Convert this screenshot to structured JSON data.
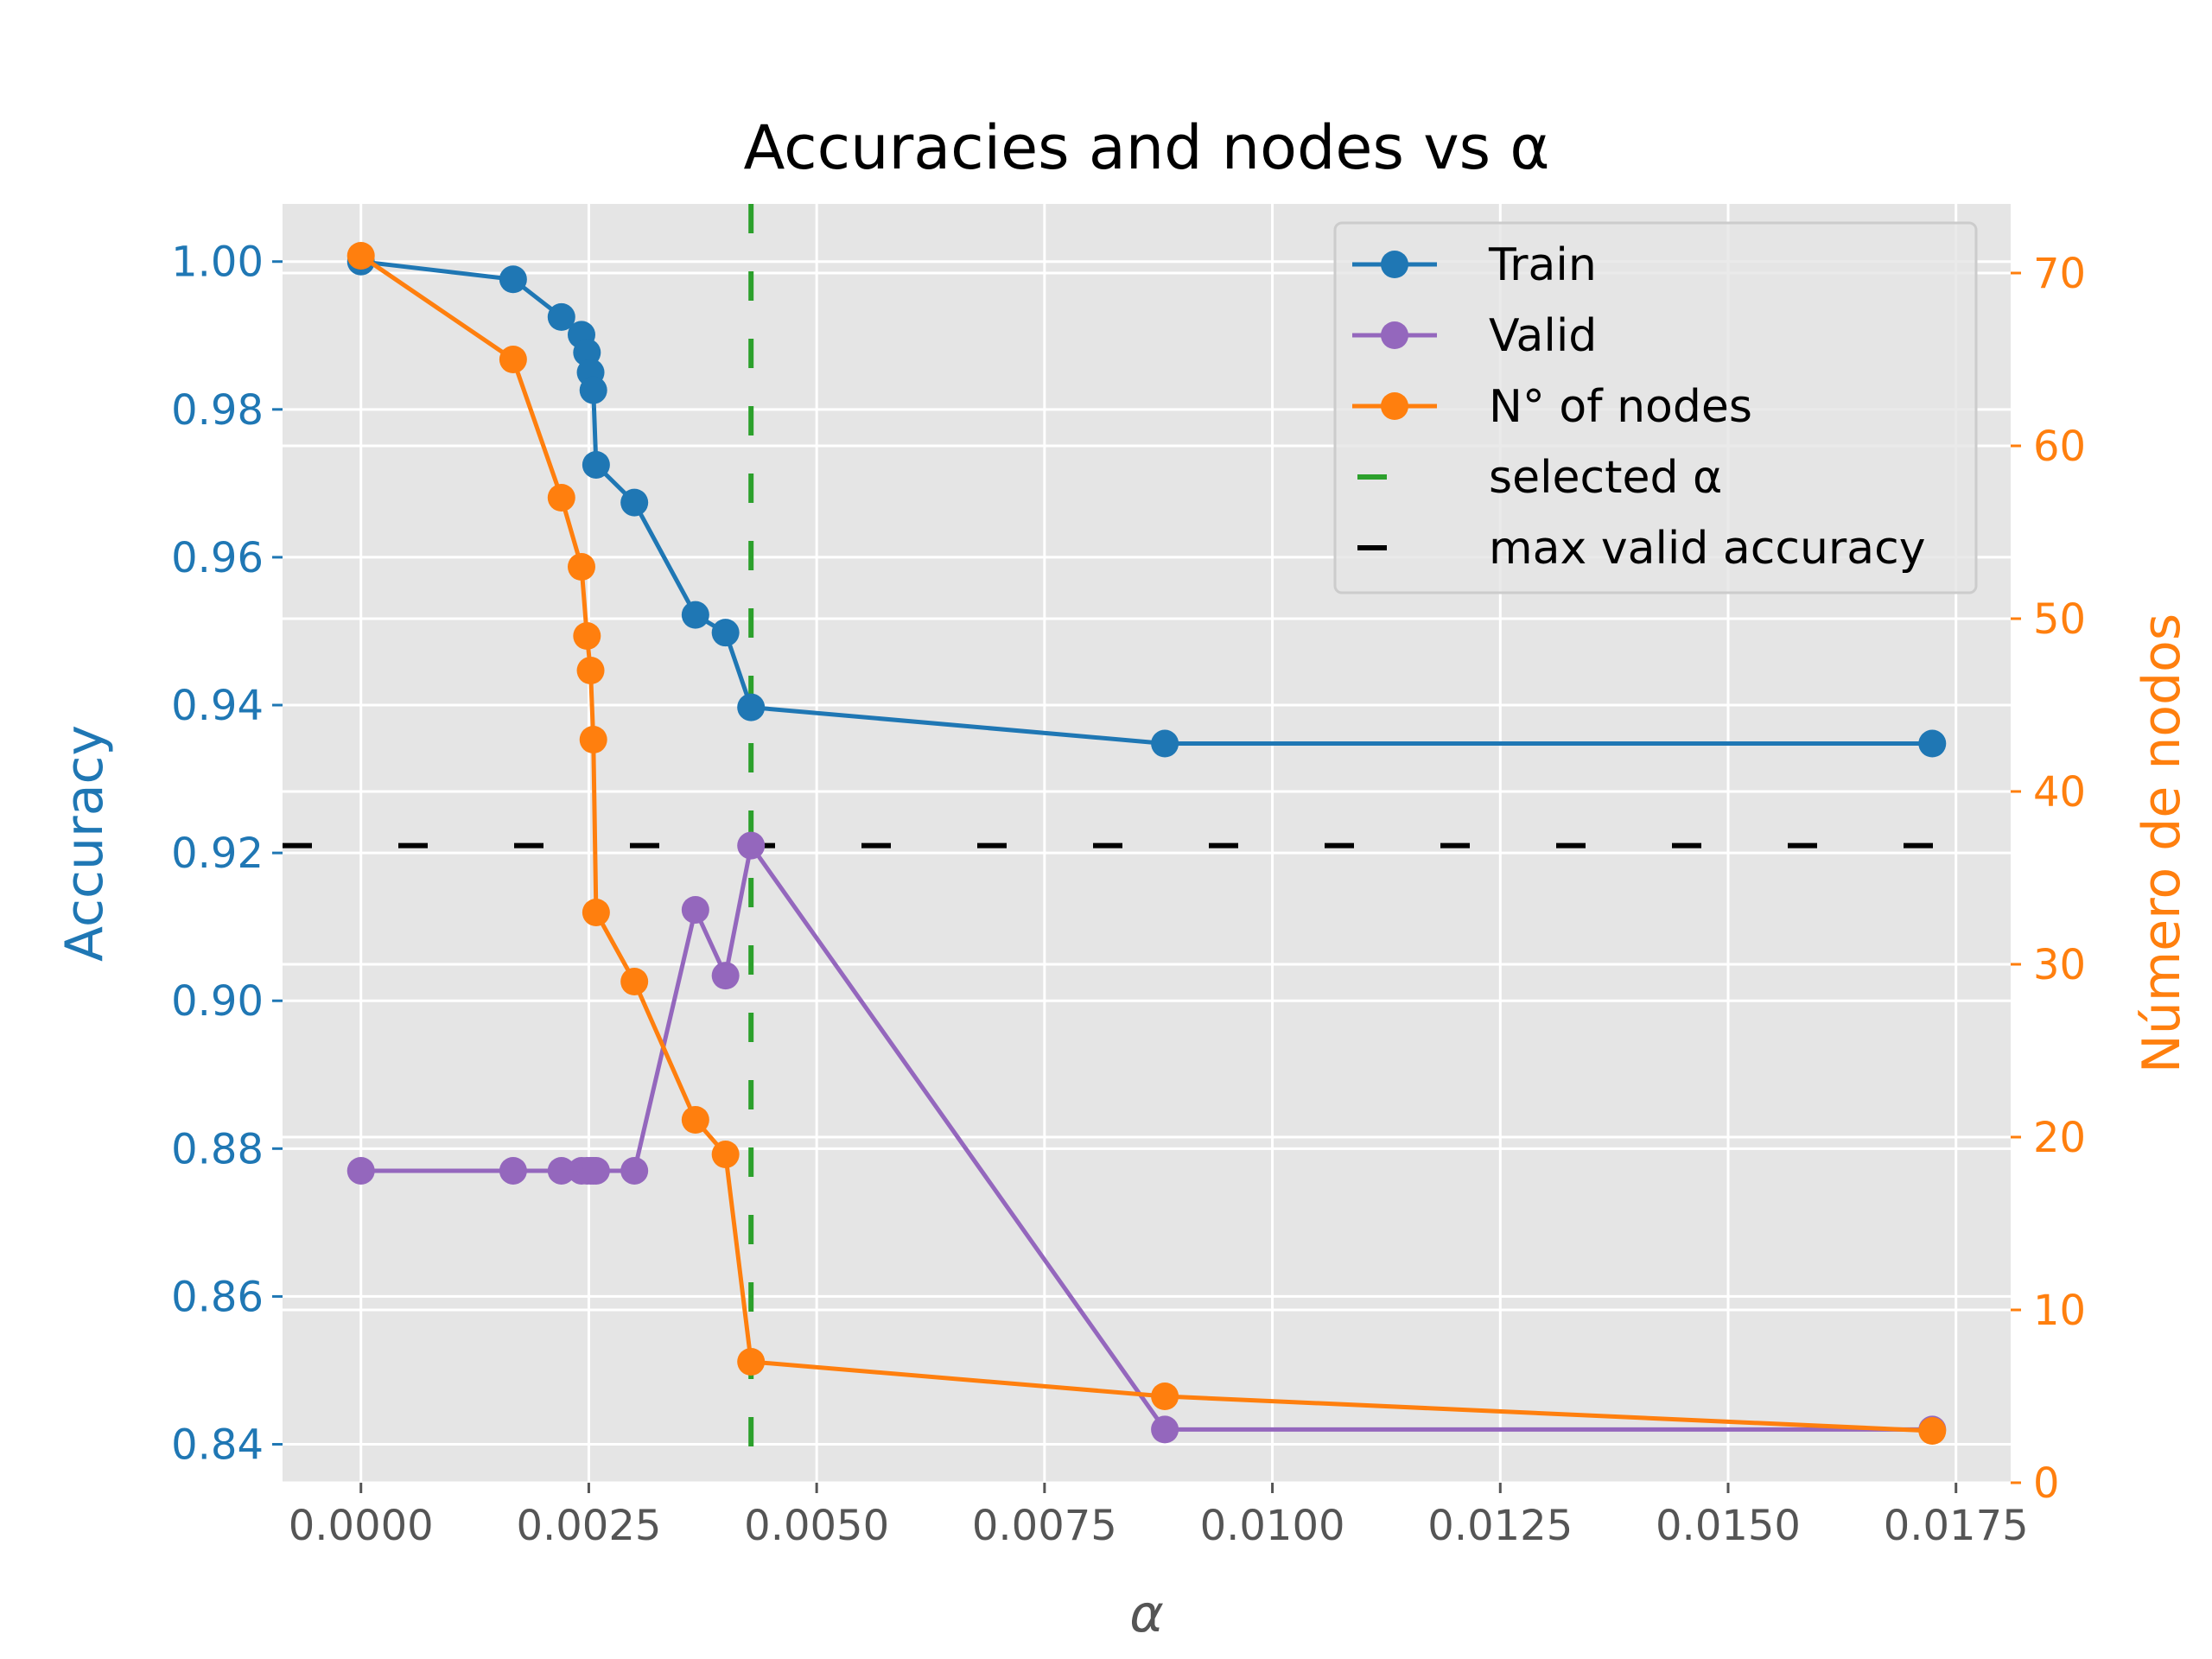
{
  "chart_data": {
    "type": "line",
    "title": "Accuracies and nodes vs α",
    "xlabel": "α",
    "ylabel_left": "Accuracy",
    "ylabel_right": "Número de nodos",
    "xlim": [
      -0.00086,
      0.0181
    ],
    "ylim_left": [
      0.8348,
      1.0078
    ],
    "ylim_right": [
      0,
      74
    ],
    "x_ticks": [
      "0.0000",
      "0.0025",
      "0.0050",
      "0.0075",
      "0.0100",
      "0.0125",
      "0.0150",
      "0.0175"
    ],
    "y_left_ticks": [
      "0.84",
      "0.86",
      "0.88",
      "0.90",
      "0.92",
      "0.94",
      "0.96",
      "0.98",
      "1.00"
    ],
    "y_right_ticks": [
      "0",
      "10",
      "20",
      "30",
      "40",
      "50",
      "60",
      "70"
    ],
    "grid": true,
    "legend_position": "top-right",
    "x": [
      0.0,
      0.00167,
      0.0022,
      0.00242,
      0.00248,
      0.00252,
      0.00255,
      0.00258,
      0.003,
      0.00367,
      0.004,
      0.00428,
      0.00882,
      0.01724
    ],
    "series": [
      {
        "name": "Train",
        "axis": "left",
        "color": "#1f77b4",
        "values": [
          1.0,
          0.9976,
          0.9925,
          0.9901,
          0.9877,
          0.985,
          0.9826,
          0.9725,
          0.9674,
          0.9522,
          0.9498,
          0.9397,
          0.9348,
          0.9348
        ]
      },
      {
        "name": "Valid",
        "axis": "left",
        "color": "#9467bd",
        "values": [
          0.877,
          0.877,
          0.877,
          0.877,
          0.877,
          0.877,
          0.877,
          0.877,
          0.877,
          0.9123,
          0.9034,
          0.921,
          0.842,
          0.842
        ]
      },
      {
        "name": "N° of nodes",
        "axis": "right",
        "color": "#ff7f0e",
        "values": [
          71,
          65,
          57,
          53,
          49,
          47,
          43,
          33,
          29,
          21,
          19,
          7,
          5,
          3
        ]
      }
    ],
    "reference_lines": [
      {
        "name": "selected α",
        "orientation": "vertical",
        "value": 0.00428,
        "color": "#2ca02c"
      },
      {
        "name": "max valid accuracy",
        "orientation": "horizontal",
        "value": 0.921,
        "color": "#000000"
      }
    ],
    "legend": [
      "Train",
      "Valid",
      "N° of nodes",
      "selected α",
      "max valid accuracy"
    ],
    "background_color": "#e5e5e5",
    "grid_color": "#ffffff"
  }
}
